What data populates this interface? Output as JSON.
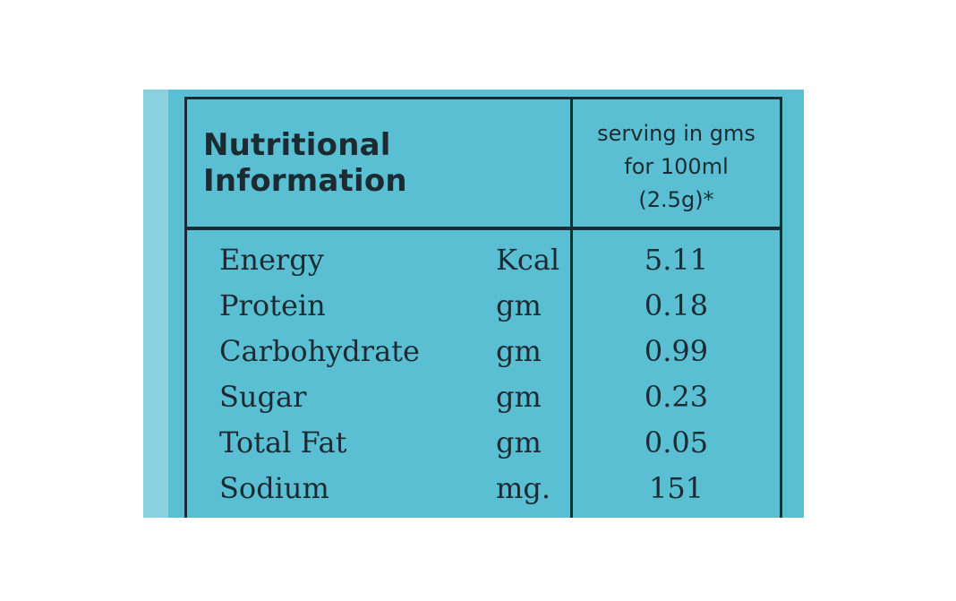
{
  "table": {
    "title": "Nutritional Information",
    "serving_header": [
      "serving in gms",
      "for 100ml",
      "(2.5g)*"
    ],
    "rows": [
      {
        "nutrient": "Energy",
        "unit": "Kcal",
        "value": "5.11"
      },
      {
        "nutrient": "Protein",
        "unit": "gm",
        "value": "0.18"
      },
      {
        "nutrient": "Carbohydrate",
        "unit": "gm",
        "value": "0.99"
      },
      {
        "nutrient": "Sugar",
        "unit": "gm",
        "value": "0.23"
      },
      {
        "nutrient": "Total Fat",
        "unit": "gm",
        "value": "0.05"
      },
      {
        "nutrient": "Sodium",
        "unit": "mg.",
        "value": "151"
      }
    ]
  },
  "colors": {
    "background": "#5bbfd3",
    "strip": "#8ad0de",
    "ink": "#1b2b31"
  }
}
